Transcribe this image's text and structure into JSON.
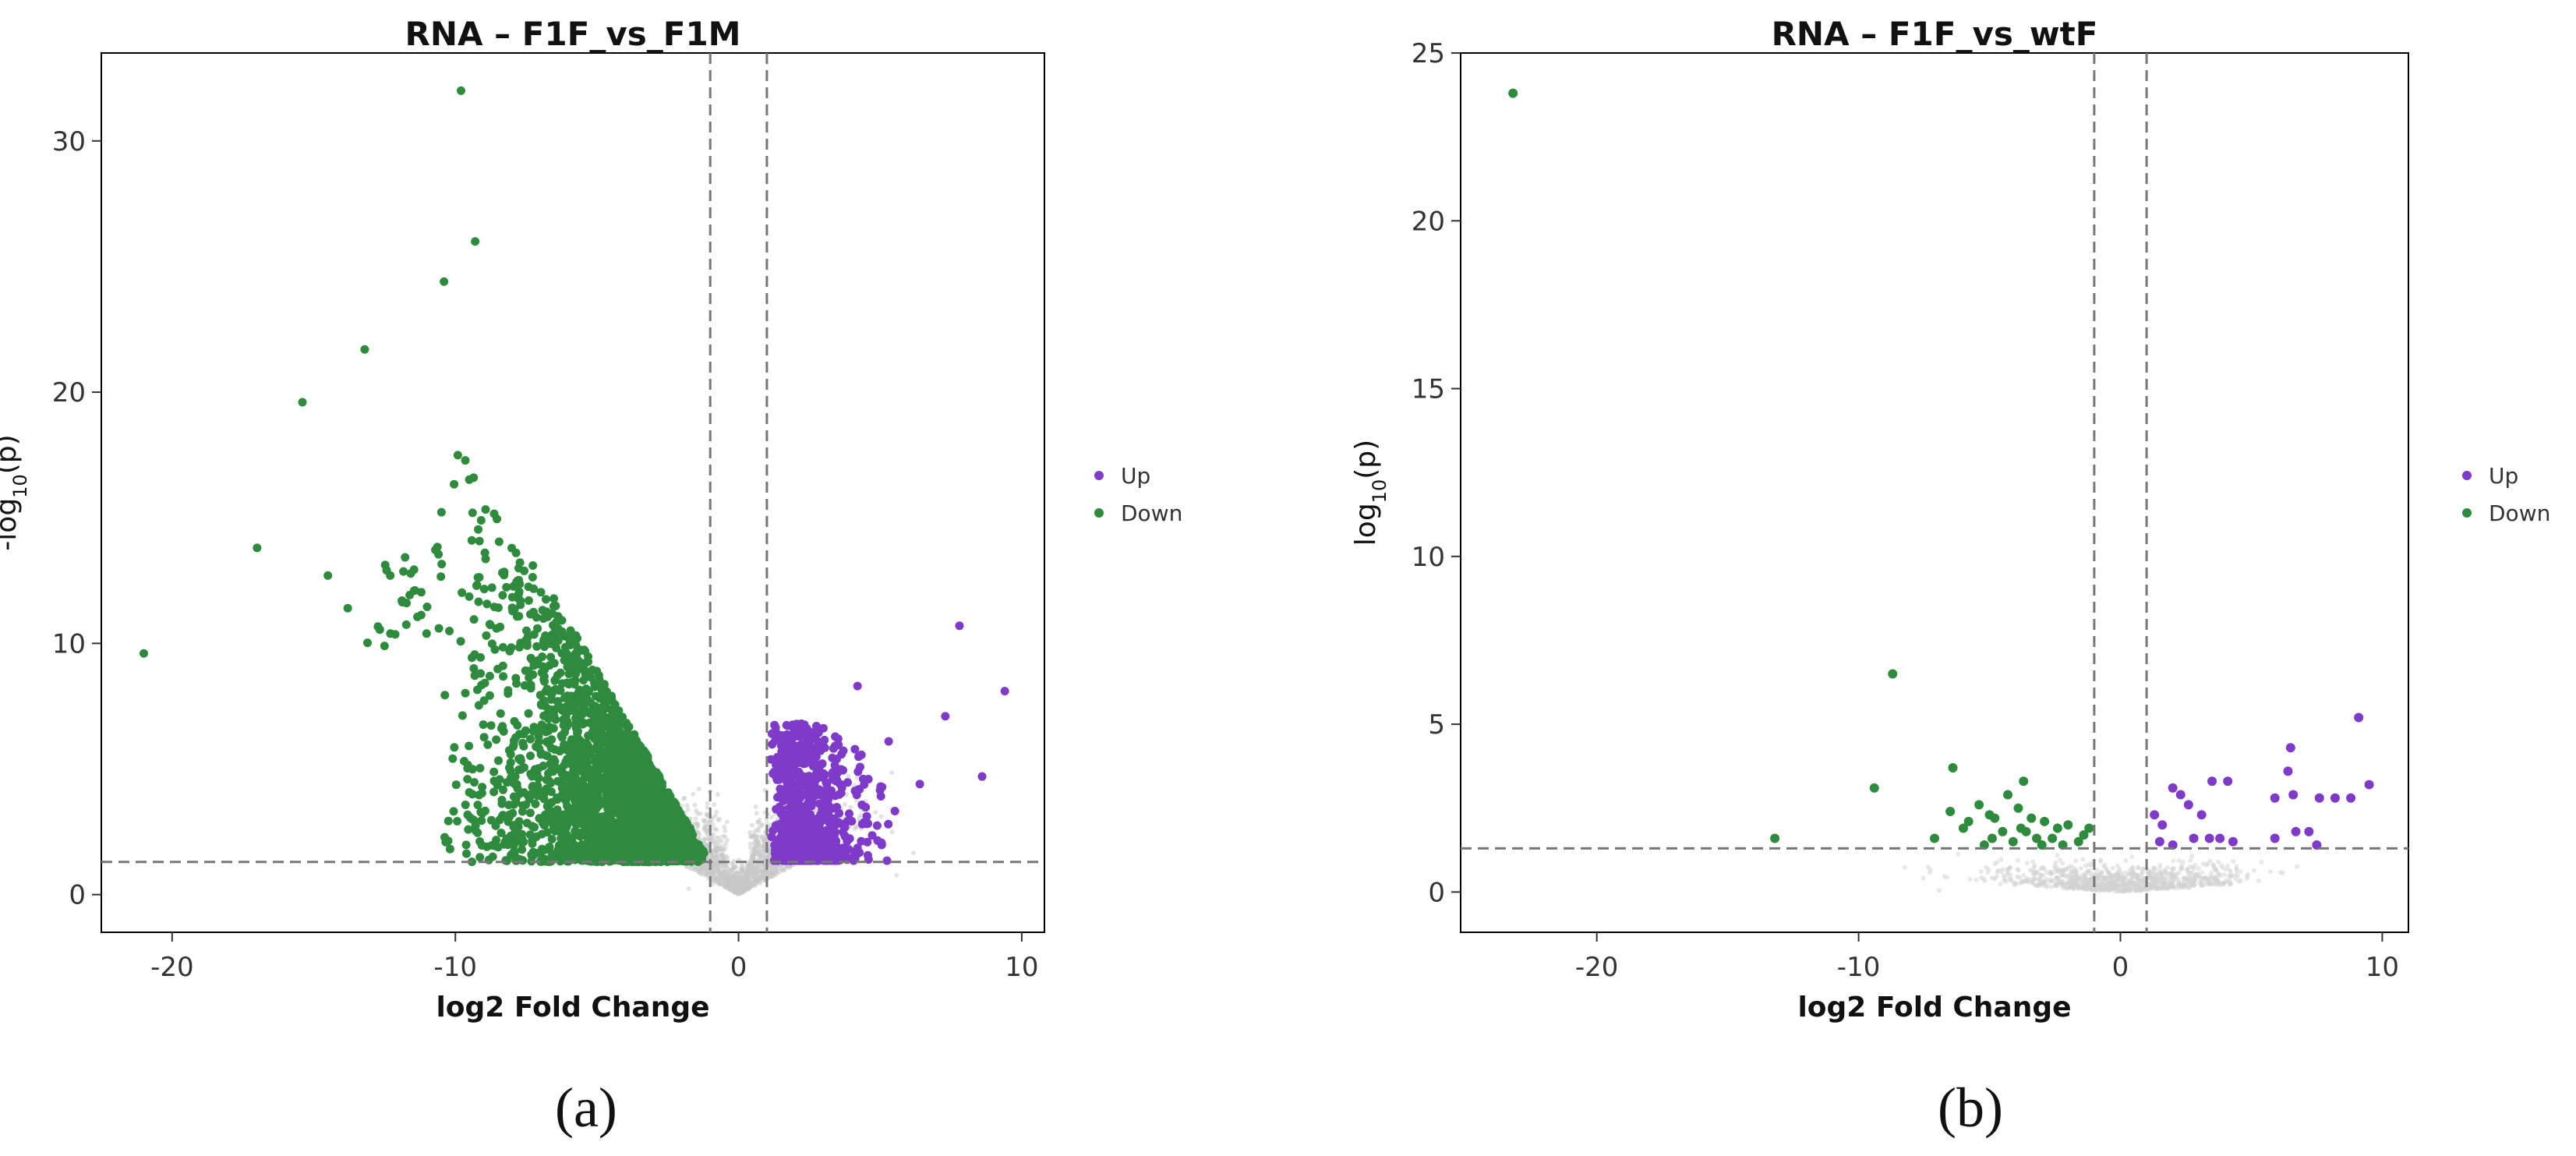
{
  "chart_data": [
    {
      "type": "scatter",
      "title": "RNA – F1F_vs_F1M",
      "xlabel": "log2 Fold Change",
      "ylabel_main": "-log",
      "ylabel_sub": "10",
      "ylabel_tail": "(p)",
      "xlim": [
        -22.5,
        10.8
      ],
      "ylim": [
        -1.5,
        33.5
      ],
      "xticks": [
        -20,
        -10,
        0,
        10
      ],
      "yticks": [
        0,
        10,
        20,
        30
      ],
      "vlines": [
        -1,
        1
      ],
      "hline": 1.3,
      "legend_position": "right",
      "series": [
        {
          "name": "Up",
          "color": "#7E3AC9"
        },
        {
          "name": "Down",
          "color": "#2E8B3E"
        }
      ],
      "down_cloud": {
        "x_range": [
          -13,
          -1
        ],
        "y_range": [
          1.3,
          24
        ],
        "count": 2600
      },
      "up_cloud": {
        "x_range": [
          1,
          5.5
        ],
        "y_range": [
          1.3,
          9
        ],
        "count": 700
      },
      "ns_color": "#C8C8C8",
      "outliers_down": [
        [
          -21,
          9.6
        ],
        [
          -17,
          13.8
        ],
        [
          -15.4,
          19.6
        ],
        [
          -14.5,
          12.7
        ],
        [
          -13.8,
          11.4
        ],
        [
          -12.5,
          9.9
        ],
        [
          -9.8,
          32
        ],
        [
          -9.3,
          26
        ],
        [
          -10.4,
          24.4
        ],
        [
          -13.2,
          21.7
        ]
      ],
      "outliers_up": [
        [
          9.4,
          8.1
        ],
        [
          7.8,
          10.7
        ],
        [
          7.3,
          7.1
        ],
        [
          8.6,
          4.7
        ],
        [
          6.4,
          4.4
        ],
        [
          5.3,
          6.1
        ],
        [
          4.2,
          8.3
        ]
      ]
    },
    {
      "type": "scatter",
      "title": "RNA – F1F_vs_wtF",
      "xlabel": "log2 Fold Change",
      "ylabel_main": "log",
      "ylabel_sub": "10",
      "ylabel_tail": "(p)",
      "xlim": [
        -25.2,
        11
      ],
      "ylim": [
        -1.2,
        25
      ],
      "xticks": [
        -20,
        -10,
        0,
        10
      ],
      "yticks": [
        0,
        5,
        10,
        15,
        20,
        25
      ],
      "vlines": [
        -1,
        1
      ],
      "hline": 1.3,
      "legend_position": "right",
      "series": [
        {
          "name": "Up",
          "color": "#7E3AC9"
        },
        {
          "name": "Down",
          "color": "#2E8B3E"
        }
      ],
      "ns_color": "#D2D2D2",
      "points_down": [
        [
          -23.2,
          23.8
        ],
        [
          -8.7,
          6.5
        ],
        [
          -9.4,
          3.1
        ],
        [
          -13.2,
          1.6
        ],
        [
          -6.4,
          3.7
        ],
        [
          -3.7,
          3.3
        ],
        [
          -6.5,
          2.4
        ],
        [
          -5.8,
          2.1
        ],
        [
          -5.4,
          2.6
        ],
        [
          -4.8,
          2.2
        ],
        [
          -4.3,
          2.9
        ],
        [
          -3.9,
          2.5
        ],
        [
          -3.4,
          2.2
        ],
        [
          -2.9,
          2.1
        ],
        [
          -2.4,
          1.9
        ],
        [
          -2.0,
          2.0
        ],
        [
          -1.4,
          1.7
        ],
        [
          -1.6,
          1.5
        ],
        [
          -2.6,
          1.6
        ],
        [
          -3.2,
          1.6
        ],
        [
          -3.8,
          1.9
        ],
        [
          -4.5,
          1.8
        ],
        [
          -4.9,
          1.6
        ],
        [
          -5.2,
          1.4
        ],
        [
          -7.1,
          1.6
        ],
        [
          -3.0,
          1.4
        ],
        [
          -4.1,
          1.5
        ],
        [
          -1.2,
          1.9
        ],
        [
          -5.0,
          2.3
        ],
        [
          -6.0,
          1.9
        ],
        [
          -2.2,
          1.4
        ],
        [
          -3.6,
          1.8
        ]
      ],
      "points_up": [
        [
          9.1,
          5.2
        ],
        [
          6.5,
          4.3
        ],
        [
          6.4,
          3.6
        ],
        [
          9.5,
          3.2
        ],
        [
          4.1,
          3.3
        ],
        [
          3.5,
          3.3
        ],
        [
          2.0,
          3.1
        ],
        [
          2.3,
          2.9
        ],
        [
          5.9,
          2.8
        ],
        [
          8.2,
          2.8
        ],
        [
          8.8,
          2.8
        ],
        [
          6.6,
          2.9
        ],
        [
          7.6,
          2.8
        ],
        [
          2.6,
          2.6
        ],
        [
          1.3,
          2.3
        ],
        [
          3.1,
          2.3
        ],
        [
          1.6,
          2.0
        ],
        [
          7.2,
          1.8
        ],
        [
          6.7,
          1.8
        ],
        [
          3.4,
          1.6
        ],
        [
          4.3,
          1.5
        ],
        [
          2.8,
          1.6
        ],
        [
          3.8,
          1.6
        ],
        [
          5.9,
          1.6
        ],
        [
          7.5,
          1.4
        ],
        [
          2.0,
          1.4
        ],
        [
          1.5,
          1.5
        ]
      ]
    }
  ],
  "panels": {
    "a": "(a)",
    "b": "(b)"
  }
}
